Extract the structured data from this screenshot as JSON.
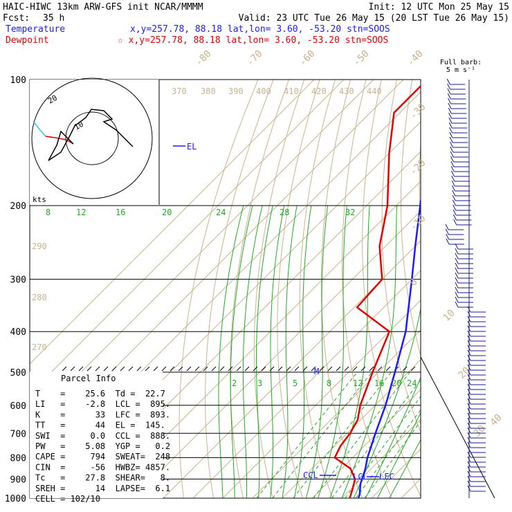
{
  "header": {
    "title": "HAIC-HIWC 13km ARW-GFS init   NCAR/MMMM",
    "init": "Init: 12 UTC Mon 25 May 15",
    "fcst_label": "Fcst:",
    "fcst_value": "35 h",
    "valid": "Valid: 23 UTC Tue 26 May 15 (20 LST Tue 26 May 15)",
    "temp_label": "Temperature",
    "temp_info": "x,y=257.78, 88.18   lat,lon=  3.60, -53.20  stn=SOOS",
    "dew_label": "Dewpoint",
    "dew_info": "☆ x,y=257.78, 88.18   lat,lon=  3.60, -53.20  stn=SOOS"
  },
  "colors": {
    "temperature": "#1a1aff",
    "dewpoint": "#e60000",
    "isotherm": "#c8b48c",
    "dry_adiabat": "#c8b48c",
    "moist_adiabat": "#22aa22",
    "mixing_ratio": "#22aa22",
    "barbs": "#1a1a8c"
  },
  "wind_barb_label": {
    "line1": "Full barb:",
    "line2": "5 m s⁻¹"
  },
  "hodograph": {
    "units_label": "kts",
    "ring_label": "20"
  },
  "labels": {
    "el": "EL",
    "ccl": "CCL",
    "lcl": "LCL",
    "lfc": "LFC",
    "m": "M"
  },
  "parcel_info": {
    "title": "Parcel Info",
    "rows": [
      "T    =    25.6  Td =  22.7",
      "LI   =    -2.8  LCL =  895.",
      "K    =      33  LFC =  893.",
      "TT   =      44  EL =  145.",
      "SWI  =     0.0  CCL =  888.",
      "PW   =    5.08  YGP =   0.2",
      "CAPE =     794  SWEAT=  248",
      "CIN  =     -56  HWBZ= 4857.",
      "Tc   =    27.8  SHEAR=   8.",
      "SREH =      14  LAPSE=  6.1",
      "CELL = 102/10"
    ]
  },
  "chart_data": {
    "type": "skew-t",
    "pressure_levels": [
      100,
      200,
      300,
      400,
      500,
      600,
      700,
      800,
      900,
      1000
    ],
    "isotherm_labels": [
      -80,
      -70,
      -60,
      -50,
      -40,
      -30,
      -20,
      -10,
      0,
      10,
      20,
      30,
      40
    ],
    "theta_labels": [
      370,
      380,
      390,
      400,
      410,
      420,
      430,
      440,
      290,
      280,
      270
    ],
    "mixing_ratio_labels_upper": [
      8,
      12,
      16,
      20,
      24,
      28,
      32
    ],
    "mixing_ratio_labels_lower": [
      2,
      3,
      5,
      8,
      12,
      16,
      20,
      24
    ],
    "temperature_profile": [
      {
        "p": 1000,
        "t": 25.6
      },
      {
        "p": 975,
        "t": 24.5
      },
      {
        "p": 950,
        "t": 23.0
      },
      {
        "p": 925,
        "t": 21.5
      },
      {
        "p": 900,
        "t": 20.4
      },
      {
        "p": 850,
        "t": 18.0
      },
      {
        "p": 800,
        "t": 15.0
      },
      {
        "p": 700,
        "t": 9.5
      },
      {
        "p": 600,
        "t": 3.5
      },
      {
        "p": 500,
        "t": -4.5
      },
      {
        "p": 400,
        "t": -14.5
      },
      {
        "p": 300,
        "t": -30.0
      },
      {
        "p": 250,
        "t": -40.0
      },
      {
        "p": 200,
        "t": -52.0
      },
      {
        "p": 150,
        "t": -67.0
      },
      {
        "p": 120,
        "t": -76.0
      },
      {
        "p": 100,
        "t": -80.0
      }
    ],
    "dewpoint_profile": [
      {
        "p": 1000,
        "t": 22.7
      },
      {
        "p": 950,
        "t": 20.5
      },
      {
        "p": 900,
        "t": 18.0
      },
      {
        "p": 850,
        "t": 13.0
      },
      {
        "p": 800,
        "t": 4.0
      },
      {
        "p": 750,
        "t": 2.0
      },
      {
        "p": 700,
        "t": 1.0
      },
      {
        "p": 650,
        "t": -1.0
      },
      {
        "p": 600,
        "t": -5.0
      },
      {
        "p": 500,
        "t": -12.0
      },
      {
        "p": 400,
        "t": -20.0
      },
      {
        "p": 350,
        "t": -39.0
      },
      {
        "p": 300,
        "t": -40.0
      },
      {
        "p": 250,
        "t": -52.0
      },
      {
        "p": 200,
        "t": -63.0
      },
      {
        "p": 150,
        "t": -80.0
      },
      {
        "p": 120,
        "t": -92.0
      },
      {
        "p": 100,
        "t": -92.0
      }
    ]
  }
}
